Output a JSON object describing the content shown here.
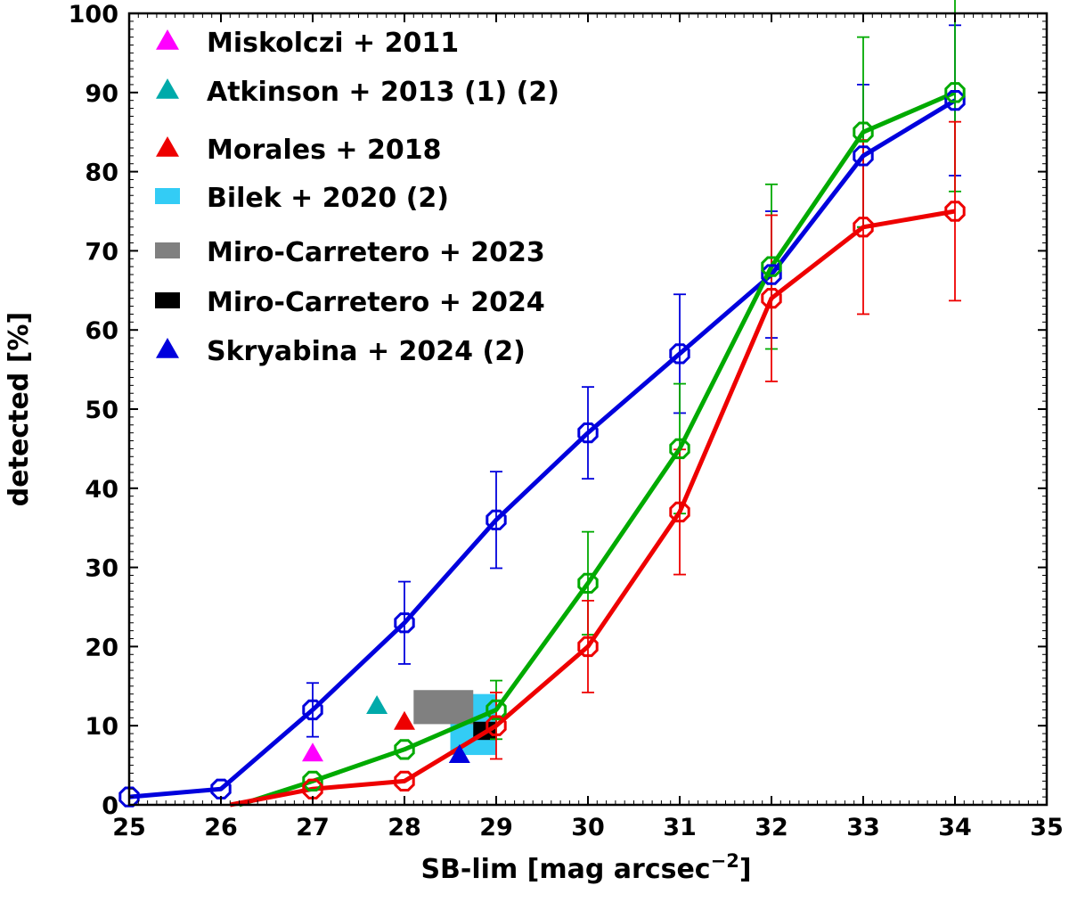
{
  "chart_data": {
    "type": "line",
    "title": "",
    "xlabel": "SB-lim  [mag arcsec",
    "xlabel_sup": "−2",
    "xlabel_end": "]",
    "ylabel": "detected  [%]",
    "xlim": [
      25,
      35
    ],
    "ylim": [
      0,
      100
    ],
    "xticks": [
      25,
      26,
      27,
      28,
      29,
      30,
      31,
      32,
      33,
      34,
      35
    ],
    "yticks": [
      0,
      10,
      20,
      30,
      40,
      50,
      60,
      70,
      80,
      90,
      100
    ],
    "grid": false,
    "legend_position": "top-left",
    "series": [
      {
        "name": "blue",
        "color": "#0000dd",
        "x": [
          25,
          26,
          27,
          28,
          29,
          30,
          31,
          32,
          33,
          34
        ],
        "y": [
          1,
          2,
          12,
          23,
          36,
          47,
          57,
          67,
          82,
          89
        ],
        "err": [
          0,
          0,
          3.4,
          5.2,
          6.1,
          5.8,
          7.5,
          8,
          9,
          9.5
        ]
      },
      {
        "name": "green",
        "color": "#00aa00",
        "x": [
          26.2,
          27,
          28,
          29,
          30,
          31,
          32,
          33,
          34
        ],
        "y": [
          0,
          3,
          7,
          12,
          28,
          45,
          68,
          85,
          90
        ],
        "err": [
          0,
          0,
          0,
          3.7,
          6.5,
          8.2,
          10.4,
          12,
          12.5
        ]
      },
      {
        "name": "red",
        "color": "#ee0000",
        "x": [
          26.1,
          27,
          28,
          29,
          30,
          31,
          32,
          33,
          34
        ],
        "y": [
          0,
          2,
          3,
          10,
          20,
          37,
          64,
          73,
          75
        ],
        "err": [
          0,
          0,
          0,
          4.2,
          5.8,
          7.9,
          10.5,
          11,
          11.3
        ]
      }
    ],
    "markers": [
      {
        "shape": "triangle",
        "x": 27,
        "y": 6.5,
        "color": "#ff00ff"
      },
      {
        "shape": "triangle",
        "x": 27.7,
        "y": 12.5,
        "color": "#00aaaa"
      },
      {
        "shape": "triangle",
        "x": 28,
        "y": 10.5,
        "color": "#ee0000"
      },
      {
        "shape": "triangle",
        "x": 28.6,
        "y": 6.3,
        "color": "#0000dd"
      }
    ],
    "rects": [
      {
        "x0": 28.5,
        "x1": 29.0,
        "y0": 6.3,
        "y1": 14,
        "color": "#33ccf5"
      },
      {
        "x0": 28.1,
        "x1": 28.75,
        "y0": 10.2,
        "y1": 14.5,
        "color": "#808080"
      },
      {
        "x0": 28.75,
        "x1": 29.0,
        "y0": 8.2,
        "y1": 10.5,
        "color": "#000000"
      }
    ],
    "legend": [
      {
        "label": "Miskolczi + 2011",
        "shape": "triangle",
        "color": "#ff00ff"
      },
      {
        "label": "Atkinson + 2013 (1) (2)",
        "shape": "triangle",
        "color": "#00aaaa"
      },
      {
        "label": "Morales + 2018",
        "shape": "triangle",
        "color": "#ee0000"
      },
      {
        "label": "Bilek + 2020 (2)",
        "shape": "square",
        "color": "#33ccf5"
      },
      {
        "label": "Miro-Carretero + 2023",
        "shape": "square",
        "color": "#808080"
      },
      {
        "label": "Miro-Carretero + 2024",
        "shape": "square",
        "color": "#000000"
      },
      {
        "label": "Skryabina + 2024 (2)",
        "shape": "triangle",
        "color": "#0000dd"
      }
    ]
  }
}
